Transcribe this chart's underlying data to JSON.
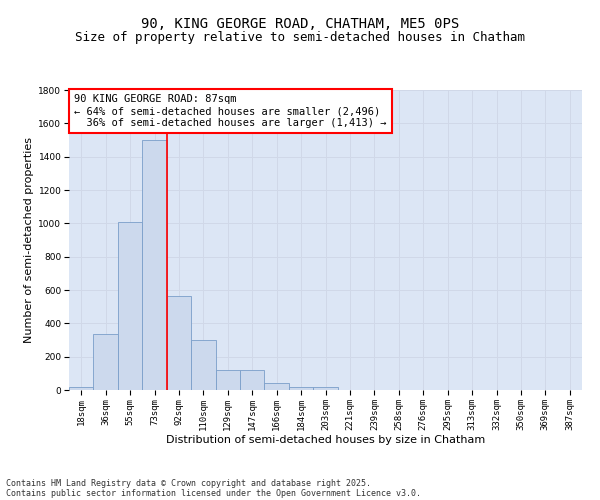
{
  "title_line1": "90, KING GEORGE ROAD, CHATHAM, ME5 0PS",
  "title_line2": "Size of property relative to semi-detached houses in Chatham",
  "xlabel": "Distribution of semi-detached houses by size in Chatham",
  "ylabel": "Number of semi-detached properties",
  "categories": [
    "18sqm",
    "36sqm",
    "55sqm",
    "73sqm",
    "92sqm",
    "110sqm",
    "129sqm",
    "147sqm",
    "166sqm",
    "184sqm",
    "203sqm",
    "221sqm",
    "239sqm",
    "258sqm",
    "276sqm",
    "295sqm",
    "313sqm",
    "332sqm",
    "350sqm",
    "369sqm",
    "387sqm"
  ],
  "values": [
    20,
    335,
    1010,
    1500,
    565,
    300,
    120,
    120,
    40,
    20,
    20,
    0,
    0,
    0,
    0,
    0,
    0,
    0,
    0,
    0,
    0
  ],
  "bar_color": "#ccd9ed",
  "bar_edge_color": "#7a9ec9",
  "grid_color": "#d0d8e8",
  "background_color": "#dce6f5",
  "vline_color": "red",
  "vline_x_index": 3.5,
  "annotation_text": "90 KING GEORGE ROAD: 87sqm\n← 64% of semi-detached houses are smaller (2,496)\n  36% of semi-detached houses are larger (1,413) →",
  "annotation_box_facecolor": "white",
  "annotation_box_edgecolor": "red",
  "ylim": [
    0,
    1800
  ],
  "yticks": [
    0,
    200,
    400,
    600,
    800,
    1000,
    1200,
    1400,
    1600,
    1800
  ],
  "footer_line1": "Contains HM Land Registry data © Crown copyright and database right 2025.",
  "footer_line2": "Contains public sector information licensed under the Open Government Licence v3.0.",
  "title_fontsize": 10,
  "subtitle_fontsize": 9,
  "axis_label_fontsize": 8,
  "tick_fontsize": 6.5,
  "annotation_fontsize": 7.5,
  "footer_fontsize": 6
}
